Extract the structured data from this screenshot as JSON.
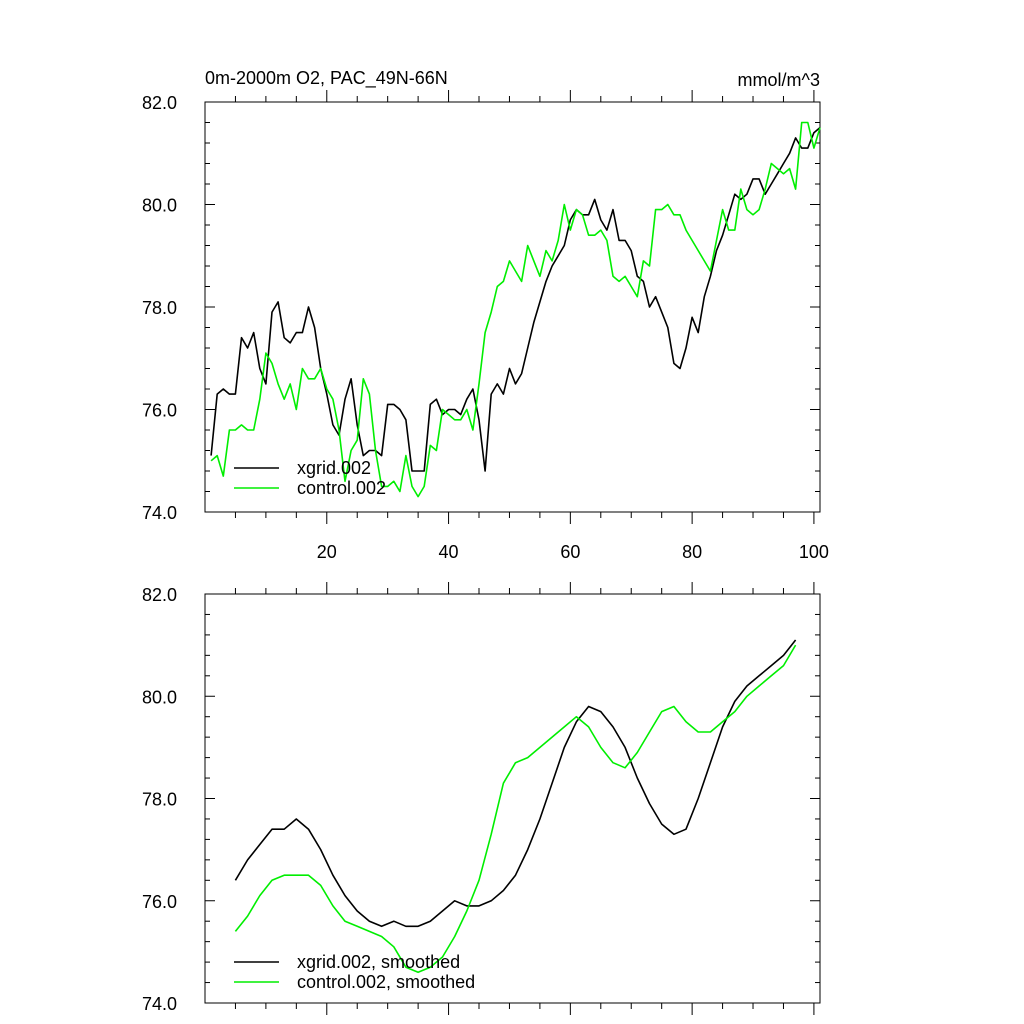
{
  "figure": {
    "title_left": "0m-2000m O2, PAC_49N-66N",
    "title_right": "mmol/m^3"
  },
  "colors": {
    "series_a": "#000000",
    "series_b": "#00ee00",
    "axes": "#000000"
  },
  "chart_data": [
    {
      "type": "line",
      "title": "0m-2000m O2, PAC_49N-66N",
      "units": "mmol/m^3",
      "xlabel": "",
      "ylabel": "",
      "xlim": [
        0,
        101
      ],
      "ylim": [
        74.0,
        82.0
      ],
      "xticks": [
        20,
        40,
        60,
        80,
        100
      ],
      "xtick_labels": [
        "20",
        "40",
        "60",
        "80",
        "100"
      ],
      "yticks": [
        74,
        76,
        78,
        80,
        82
      ],
      "ytick_labels": [
        "74.0",
        "76.0",
        "78.0",
        "80.0",
        "82.0"
      ],
      "legend": "bottom-left",
      "series": [
        {
          "name": "xgrid.002",
          "color": "#000000",
          "x": [
            1,
            2,
            3,
            4,
            5,
            6,
            7,
            8,
            9,
            10,
            11,
            12,
            13,
            14,
            15,
            16,
            17,
            18,
            19,
            20,
            21,
            22,
            23,
            24,
            25,
            26,
            27,
            28,
            29,
            30,
            31,
            32,
            33,
            34,
            35,
            36,
            37,
            38,
            39,
            40,
            41,
            42,
            43,
            44,
            45,
            46,
            47,
            48,
            49,
            50,
            51,
            52,
            53,
            54,
            55,
            56,
            57,
            58,
            59,
            60,
            61,
            62,
            63,
            64,
            65,
            66,
            67,
            68,
            69,
            70,
            71,
            72,
            73,
            74,
            75,
            76,
            77,
            78,
            79,
            80,
            81,
            82,
            83,
            84,
            85,
            86,
            87,
            88,
            89,
            90,
            91,
            92,
            93,
            94,
            95,
            96,
            97,
            98,
            99,
            100,
            101
          ],
          "values": [
            75.1,
            76.3,
            76.4,
            76.3,
            76.3,
            77.4,
            77.2,
            77.5,
            76.8,
            76.5,
            77.9,
            78.1,
            77.4,
            77.3,
            77.5,
            77.5,
            78.0,
            77.6,
            76.8,
            76.3,
            75.7,
            75.5,
            76.2,
            76.6,
            75.7,
            75.1,
            75.2,
            75.2,
            75.1,
            76.1,
            76.1,
            76.0,
            75.8,
            74.8,
            74.8,
            74.8,
            76.1,
            76.2,
            75.9,
            76.0,
            76.0,
            75.9,
            76.2,
            76.4,
            75.8,
            74.8,
            76.3,
            76.5,
            76.3,
            76.8,
            76.5,
            76.7,
            77.2,
            77.7,
            78.1,
            78.5,
            78.8,
            79.0,
            79.2,
            79.7,
            79.9,
            79.8,
            79.8,
            80.1,
            79.7,
            79.5,
            79.9,
            79.3,
            79.3,
            79.1,
            78.6,
            78.5,
            78.0,
            78.2,
            77.9,
            77.6,
            76.9,
            76.8,
            77.2,
            77.8,
            77.5,
            78.2,
            78.6,
            79.1,
            79.4,
            79.8,
            80.2,
            80.1,
            80.2,
            80.5,
            80.5,
            80.2,
            80.4,
            80.6,
            80.8,
            81.0,
            81.3,
            81.1,
            81.1,
            81.4,
            81.5
          ]
        },
        {
          "name": "control.002",
          "color": "#00ee00",
          "x": [
            1,
            2,
            3,
            4,
            5,
            6,
            7,
            8,
            9,
            10,
            11,
            12,
            13,
            14,
            15,
            16,
            17,
            18,
            19,
            20,
            21,
            22,
            23,
            24,
            25,
            26,
            27,
            28,
            29,
            30,
            31,
            32,
            33,
            34,
            35,
            36,
            37,
            38,
            39,
            40,
            41,
            42,
            43,
            44,
            45,
            46,
            47,
            48,
            49,
            50,
            51,
            52,
            53,
            54,
            55,
            56,
            57,
            58,
            59,
            60,
            61,
            62,
            63,
            64,
            65,
            66,
            67,
            68,
            69,
            70,
            71,
            72,
            73,
            74,
            75,
            76,
            77,
            78,
            79,
            80,
            81,
            82,
            83,
            84,
            85,
            86,
            87,
            88,
            89,
            90,
            91,
            92,
            93,
            94,
            95,
            96,
            97,
            98,
            99,
            100,
            101
          ],
          "values": [
            75.0,
            75.1,
            74.7,
            75.6,
            75.6,
            75.7,
            75.6,
            75.6,
            76.2,
            77.1,
            76.9,
            76.5,
            76.2,
            76.5,
            76.0,
            76.8,
            76.6,
            76.6,
            76.8,
            76.4,
            76.2,
            75.6,
            74.6,
            75.2,
            75.4,
            76.6,
            76.3,
            75.2,
            74.5,
            74.5,
            74.6,
            74.4,
            75.1,
            74.5,
            74.3,
            74.5,
            75.3,
            75.2,
            76.0,
            75.9,
            75.8,
            75.8,
            76.0,
            75.6,
            76.5,
            77.5,
            77.9,
            78.4,
            78.5,
            78.9,
            78.7,
            78.5,
            79.2,
            78.9,
            78.6,
            79.1,
            78.9,
            79.3,
            80.0,
            79.5,
            79.9,
            79.8,
            79.4,
            79.4,
            79.5,
            79.3,
            78.6,
            78.5,
            78.6,
            78.4,
            78.2,
            78.9,
            78.8,
            79.9,
            79.9,
            80.0,
            79.8,
            79.8,
            79.5,
            79.3,
            79.1,
            78.9,
            78.7,
            79.3,
            79.9,
            79.5,
            79.5,
            80.3,
            79.9,
            79.8,
            79.9,
            80.3,
            80.8,
            80.7,
            80.6,
            80.7,
            80.3,
            81.6,
            81.6,
            81.1,
            81.5
          ]
        }
      ]
    },
    {
      "type": "line",
      "title": "",
      "xlabel": "",
      "ylabel": "",
      "xlim": [
        0,
        101
      ],
      "ylim": [
        74.0,
        82.0
      ],
      "xticks": [
        20,
        40,
        60,
        80,
        100
      ],
      "xtick_labels": [],
      "yticks": [
        74,
        76,
        78,
        80,
        82
      ],
      "ytick_labels": [
        "74.0",
        "76.0",
        "78.0",
        "80.0",
        "82.0"
      ],
      "legend": "bottom-left",
      "series": [
        {
          "name": "xgrid.002, smoothed",
          "color": "#000000",
          "x": [
            5,
            7,
            9,
            11,
            13,
            15,
            17,
            19,
            21,
            23,
            25,
            27,
            29,
            31,
            33,
            35,
            37,
            39,
            41,
            43,
            45,
            47,
            49,
            51,
            53,
            55,
            57,
            59,
            61,
            63,
            65,
            67,
            69,
            71,
            73,
            75,
            77,
            79,
            81,
            83,
            85,
            87,
            89,
            91,
            93,
            95,
            97
          ],
          "values": [
            76.4,
            76.8,
            77.1,
            77.4,
            77.4,
            77.6,
            77.4,
            77.0,
            76.5,
            76.1,
            75.8,
            75.6,
            75.5,
            75.6,
            75.5,
            75.5,
            75.6,
            75.8,
            76.0,
            75.9,
            75.9,
            76.0,
            76.2,
            76.5,
            77.0,
            77.6,
            78.3,
            79.0,
            79.5,
            79.8,
            79.7,
            79.4,
            79.0,
            78.4,
            77.9,
            77.5,
            77.3,
            77.4,
            78.0,
            78.7,
            79.4,
            79.9,
            80.2,
            80.4,
            80.6,
            80.8,
            81.1
          ]
        },
        {
          "name": "control.002, smoothed",
          "color": "#00ee00",
          "x": [
            5,
            7,
            9,
            11,
            13,
            15,
            17,
            19,
            21,
            23,
            25,
            27,
            29,
            31,
            33,
            35,
            37,
            39,
            41,
            43,
            45,
            47,
            49,
            51,
            53,
            55,
            57,
            59,
            61,
            63,
            65,
            67,
            69,
            71,
            73,
            75,
            77,
            79,
            81,
            83,
            85,
            87,
            89,
            91,
            93,
            95,
            97
          ],
          "values": [
            75.4,
            75.7,
            76.1,
            76.4,
            76.5,
            76.5,
            76.5,
            76.3,
            75.9,
            75.6,
            75.5,
            75.4,
            75.3,
            75.1,
            74.7,
            74.6,
            74.7,
            74.9,
            75.3,
            75.8,
            76.4,
            77.3,
            78.3,
            78.7,
            78.8,
            79.0,
            79.2,
            79.4,
            79.6,
            79.4,
            79.0,
            78.7,
            78.6,
            78.9,
            79.3,
            79.7,
            79.8,
            79.5,
            79.3,
            79.3,
            79.5,
            79.7,
            80.0,
            80.2,
            80.4,
            80.6,
            81.0
          ]
        }
      ]
    }
  ]
}
